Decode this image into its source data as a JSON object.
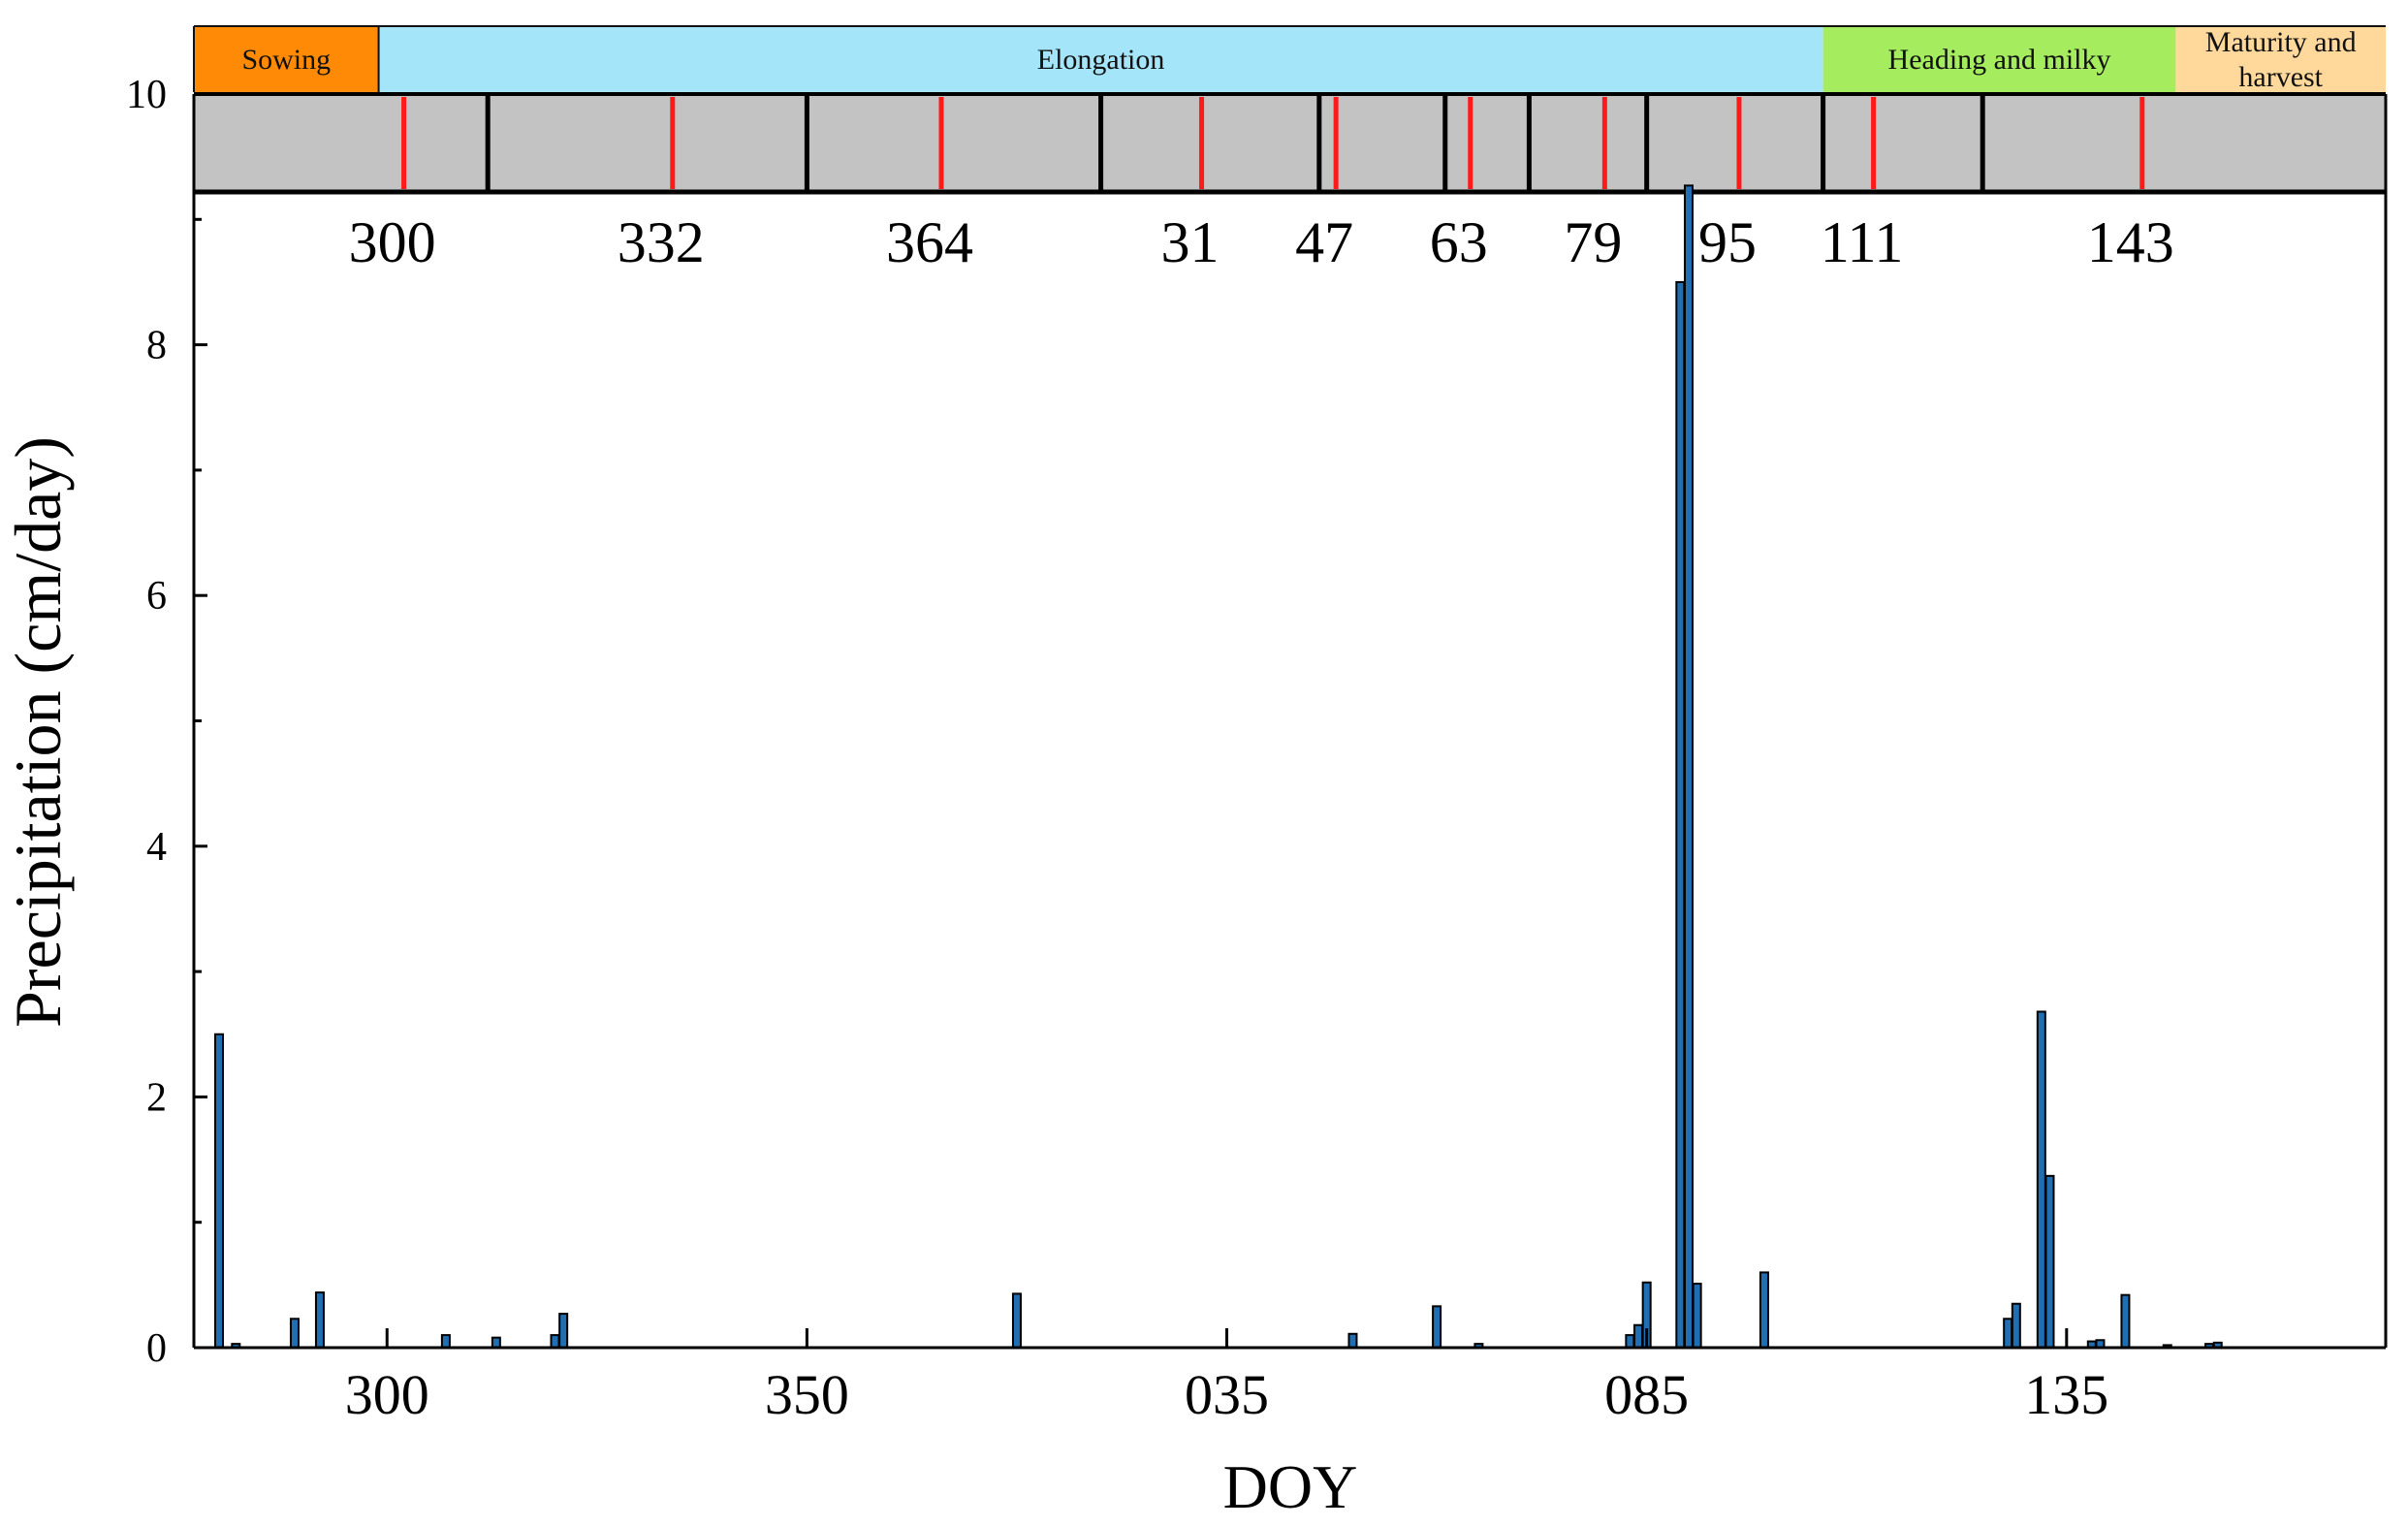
{
  "chart_data": {
    "type": "bar",
    "xlabel": "DOY",
    "ylabel": "Precipitation (cm/day)",
    "ylim": [
      0,
      10
    ],
    "yticks": [
      0,
      2,
      4,
      6,
      8,
      10
    ],
    "grid": false,
    "x_domain": {
      "start_doy": 277,
      "year_length": 365,
      "end_day_index": 261
    },
    "x_ticks": [
      {
        "label": "300",
        "day_index": 23
      },
      {
        "label": "350",
        "day_index": 73
      },
      {
        "label": "035",
        "day_index": 123
      },
      {
        "label": "085",
        "day_index": 173
      },
      {
        "label": "135",
        "day_index": 223
      }
    ],
    "series": [
      {
        "color": "#1f6fb2",
        "points": [
          {
            "doy": 280,
            "day_index": 3,
            "value": 2.5
          },
          {
            "doy": 282,
            "day_index": 5,
            "value": 0.03
          },
          {
            "doy": 289,
            "day_index": 12,
            "value": 0.23
          },
          {
            "doy": 292,
            "day_index": 15,
            "value": 0.44
          },
          {
            "doy": 307,
            "day_index": 30,
            "value": 0.1
          },
          {
            "doy": 313,
            "day_index": 36,
            "value": 0.08
          },
          {
            "doy": 320,
            "day_index": 43,
            "value": 0.1
          },
          {
            "doy": 321,
            "day_index": 44,
            "value": 0.27
          },
          {
            "doy": 375,
            "day_index": 98,
            "value": 0.43
          },
          {
            "doy": 50,
            "day_index": 138,
            "value": 0.11
          },
          {
            "doy": 60,
            "day_index": 148,
            "value": 0.33
          },
          {
            "doy": 65,
            "day_index": 153,
            "value": 0.03
          },
          {
            "doy": 83,
            "day_index": 171,
            "value": 0.1
          },
          {
            "doy": 84,
            "day_index": 172,
            "value": 0.18
          },
          {
            "doy": 85,
            "day_index": 173,
            "value": 0.52
          },
          {
            "doy": 89,
            "day_index": 177,
            "value": 8.5
          },
          {
            "doy": 90,
            "day_index": 178,
            "value": 9.27
          },
          {
            "doy": 91,
            "day_index": 179,
            "value": 0.51
          },
          {
            "doy": 99,
            "day_index": 187,
            "value": 0.6
          },
          {
            "doy": 128,
            "day_index": 216,
            "value": 0.23
          },
          {
            "doy": 129,
            "day_index": 217,
            "value": 0.35
          },
          {
            "doy": 132,
            "day_index": 220,
            "value": 2.68
          },
          {
            "doy": 133,
            "day_index": 221,
            "value": 1.37
          },
          {
            "doy": 138,
            "day_index": 226,
            "value": 0.05
          },
          {
            "doy": 139,
            "day_index": 227,
            "value": 0.06
          },
          {
            "doy": 142,
            "day_index": 230,
            "value": 0.42
          },
          {
            "doy": 147,
            "day_index": 235,
            "value": 0.02
          },
          {
            "doy": 152,
            "day_index": 240,
            "value": 0.03
          },
          {
            "doy": 153,
            "day_index": 241,
            "value": 0.04
          }
        ]
      }
    ],
    "stages": [
      {
        "label_lines": [
          "Sowing"
        ],
        "color": "#ff8a05",
        "start_index": 0,
        "end_index": 22
      },
      {
        "label_lines": [
          "Elongation"
        ],
        "color": "#a5e5fa",
        "start_index": 22,
        "end_index": 194
      },
      {
        "label_lines": [
          "Heading and milky"
        ],
        "color": "#a5ec5f",
        "start_index": 194,
        "end_index": 236
      },
      {
        "label_lines": [
          "Maturity and",
          "harvest"
        ],
        "color": "#ffd99b",
        "start_index": 236,
        "end_index": 261
      }
    ],
    "sampling_band": {
      "fill": "#c3c3c3",
      "red_marks": [
        {
          "label": "300",
          "day_index": 25
        },
        {
          "label": "332",
          "day_index": 57
        },
        {
          "label": "364",
          "day_index": 89
        },
        {
          "label": "31",
          "day_index": 120
        },
        {
          "label": "47",
          "day_index": 136
        },
        {
          "label": "63",
          "day_index": 152
        },
        {
          "label": "79",
          "day_index": 168
        },
        {
          "label": "95",
          "day_index": 184
        },
        {
          "label": "111",
          "day_index": 200
        },
        {
          "label": "143",
          "day_index": 232
        }
      ],
      "dividers": [
        {
          "day_index": 35
        },
        {
          "day_index": 73
        },
        {
          "day_index": 108
        },
        {
          "day_index": 134
        },
        {
          "day_index": 149
        },
        {
          "day_index": 159
        },
        {
          "day_index": 173
        },
        {
          "day_index": 194
        },
        {
          "day_index": 213
        }
      ]
    }
  }
}
